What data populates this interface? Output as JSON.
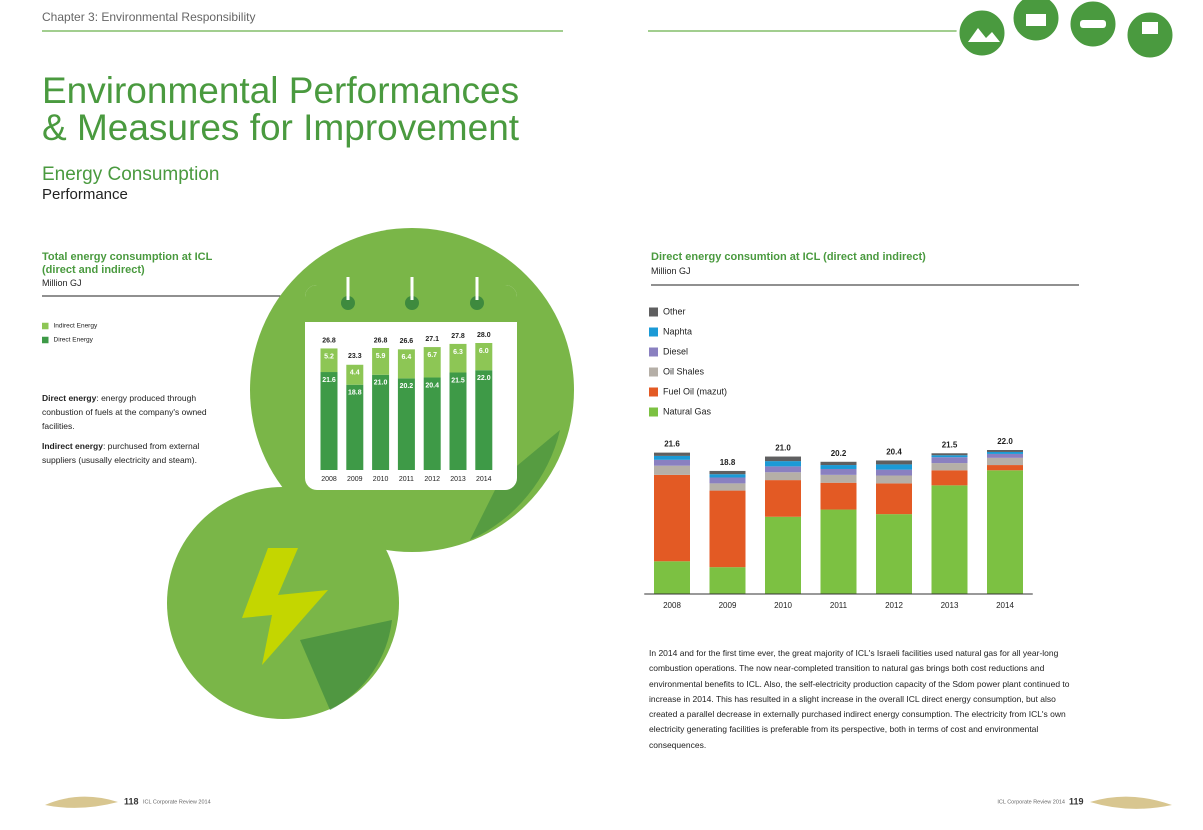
{
  "header": {
    "chapter": "Chapter 3: Environmental Responsibility"
  },
  "title": [
    "Environmental Performances",
    "& Measures for Improvement"
  ],
  "section": "Energy Consumption",
  "subsection": "Performance",
  "definitions": [
    {
      "term": "Direct energy",
      "text": ": energy produced through conbustion of fuels  at the company's owned facilities."
    },
    {
      "term": "Indirect energy",
      "text": ": purchused from external suppliers (ususally electricity and steam)."
    }
  ],
  "paragraph": "In 2014 and for the first time ever, the great majority of ICL's Israeli facilities used natural gas for all year-long combustion operations. The now near-completed transition to natural gas brings both cost reductions and environmental benefits to ICL. Also, the self-electricity production capacity of the Sdom power plant continued to increase in 2014. This has resulted in a slight increase in the overall ICL direct energy consumption, but also created a parallel decrease in externally purchased indirect energy consumption. The electricity from ICL's own electricity generating facilities is preferable from its perspective, both in terms of cost and environmental consequences.",
  "footer": {
    "left_page": "118",
    "left_text": "ICL Corporate Review 2014",
    "right_text": "ICL Corporate Review 2014",
    "right_page": "119"
  },
  "chart_data": [
    {
      "type": "stacked-bar",
      "title": "Total energy consumption at ICL\n(direct and indirect)",
      "subtitle": "Million GJ",
      "categories": [
        "2008",
        "2009",
        "2010",
        "2011",
        "2012",
        "2013",
        "2014"
      ],
      "series": [
        {
          "name": "Direct Energy",
          "color": "#3e9a47",
          "values": [
            21.6,
            18.8,
            21.0,
            20.2,
            20.4,
            21.5,
            22.0
          ],
          "value_labels": [
            "21.6",
            "18.8",
            "21.0",
            "20.2",
            "20.4",
            "21.5",
            "22.0"
          ]
        },
        {
          "name": "Indirect Energy",
          "color": "#8dc655",
          "values": [
            5.2,
            4.4,
            5.9,
            6.4,
            6.7,
            6.3,
            6.0
          ],
          "value_labels": [
            "5.2",
            "4.4",
            "5.9",
            "6.4",
            "6.7",
            "6.3",
            "6.0"
          ]
        }
      ],
      "totals": [
        26.8,
        23.3,
        26.8,
        26.6,
        27.1,
        27.8,
        28.0
      ],
      "total_labels": [
        "26.8",
        "23.3",
        "26.8",
        "26.6",
        "27.1",
        "27.8",
        "28.0"
      ]
    },
    {
      "type": "stacked-bar",
      "title": "Direct energy consumtion at ICL (direct and indirect)",
      "subtitle": "Million GJ",
      "categories": [
        "2008",
        "2009",
        "2010",
        "2011",
        "2012",
        "2013",
        "2014"
      ],
      "series": [
        {
          "name": "Natural Gas",
          "color": "#7cc142",
          "values": [
            5.0,
            4.1,
            11.8,
            12.9,
            12.2,
            16.6,
            18.9
          ]
        },
        {
          "name": "Fuel Oil (mazut)",
          "color": "#e35a24",
          "values": [
            13.2,
            11.7,
            5.6,
            4.1,
            4.7,
            2.3,
            0.8
          ]
        },
        {
          "name": "Oil Shales",
          "color": "#b5afa7",
          "values": [
            1.4,
            1.1,
            1.2,
            1.2,
            1.2,
            1.1,
            1.1
          ]
        },
        {
          "name": "Diesel",
          "color": "#8a80c0",
          "values": [
            0.9,
            0.9,
            0.9,
            0.9,
            0.9,
            0.9,
            0.6
          ]
        },
        {
          "name": "Naphta",
          "color": "#1b9ad6",
          "values": [
            0.6,
            0.5,
            0.8,
            0.6,
            0.8,
            0.3,
            0.3
          ]
        },
        {
          "name": "Other",
          "color": "#5f5f60",
          "values": [
            0.5,
            0.5,
            0.7,
            0.5,
            0.6,
            0.3,
            0.3
          ]
        }
      ],
      "totals": [
        21.6,
        18.8,
        21.0,
        20.2,
        20.4,
        21.5,
        22.0
      ],
      "total_labels": [
        "21.6",
        "18.8",
        "21.0",
        "20.2",
        "20.4",
        "21.5",
        "22.0"
      ]
    }
  ]
}
